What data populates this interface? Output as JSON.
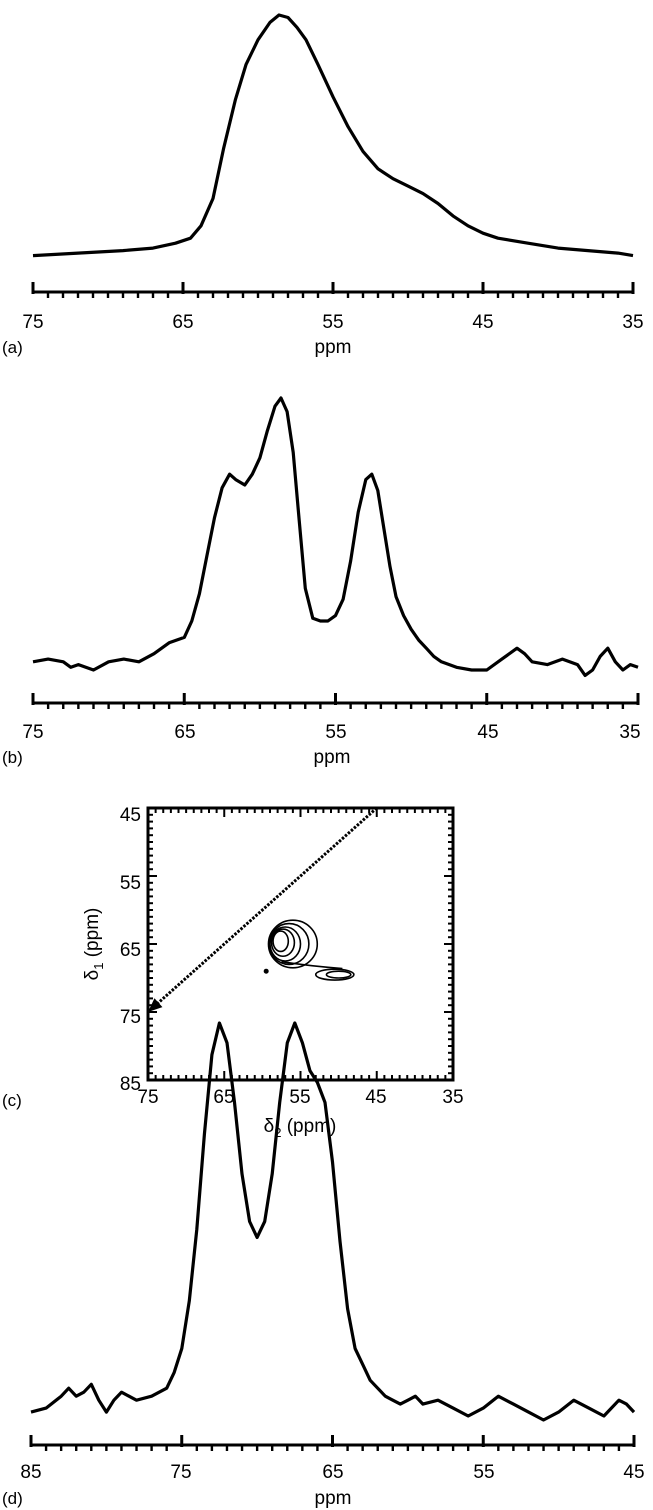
{
  "chart_data": [
    {
      "panel": "(a)",
      "type": "line",
      "xlabel": "ppm",
      "xlim": [
        75,
        35
      ],
      "xticks": [
        "75",
        "65",
        "55",
        "45",
        "35"
      ],
      "series": [
        {
          "x": [
            75,
            72,
            69,
            67,
            65.5,
            64.5,
            63.8,
            63,
            62.3,
            61.5,
            60.8,
            60,
            59.2,
            58.6,
            58,
            57.4,
            56.8,
            56,
            55,
            54,
            53,
            52,
            51,
            50,
            49,
            48,
            47,
            46,
            45,
            44,
            42,
            40,
            38,
            36,
            35
          ],
          "y": [
            0.03,
            0.04,
            0.05,
            0.06,
            0.08,
            0.1,
            0.15,
            0.26,
            0.46,
            0.66,
            0.8,
            0.9,
            0.97,
            1.0,
            0.99,
            0.95,
            0.9,
            0.8,
            0.67,
            0.55,
            0.45,
            0.38,
            0.34,
            0.31,
            0.28,
            0.24,
            0.19,
            0.15,
            0.12,
            0.1,
            0.08,
            0.06,
            0.05,
            0.04,
            0.03
          ]
        }
      ]
    },
    {
      "panel": "(b)",
      "type": "line",
      "xlabel": "ppm",
      "xlim": [
        75,
        35
      ],
      "xticks": [
        "75",
        "65",
        "55",
        "45",
        "35"
      ],
      "series": [
        {
          "x": [
            75,
            74,
            73,
            72.5,
            72,
            71,
            70,
            69,
            68,
            67,
            66,
            65,
            64.5,
            64,
            63.5,
            63,
            62.5,
            62,
            61.6,
            61,
            60.5,
            60,
            59.5,
            59,
            58.6,
            58.2,
            57.8,
            57.4,
            57,
            56.5,
            56,
            55.5,
            55,
            54.5,
            54,
            53.5,
            53,
            52.6,
            52.2,
            51.8,
            51.4,
            51,
            50.5,
            50,
            49.5,
            49,
            48.5,
            48,
            47,
            46,
            45,
            44,
            43,
            42.5,
            42,
            41,
            40,
            39,
            38.5,
            38,
            37.5,
            37,
            36.5,
            36,
            35.5,
            35
          ],
          "y": [
            0.03,
            0.04,
            0.03,
            0.01,
            0.02,
            0.0,
            0.03,
            0.04,
            0.03,
            0.06,
            0.1,
            0.12,
            0.18,
            0.28,
            0.42,
            0.56,
            0.67,
            0.72,
            0.7,
            0.68,
            0.72,
            0.78,
            0.88,
            0.97,
            1.0,
            0.95,
            0.8,
            0.55,
            0.3,
            0.19,
            0.18,
            0.18,
            0.2,
            0.26,
            0.4,
            0.58,
            0.7,
            0.72,
            0.66,
            0.52,
            0.38,
            0.27,
            0.2,
            0.15,
            0.11,
            0.08,
            0.05,
            0.03,
            0.01,
            0.0,
            0.0,
            0.04,
            0.08,
            0.06,
            0.03,
            0.02,
            0.04,
            0.02,
            -0.02,
            0.0,
            0.05,
            0.08,
            0.03,
            0.0,
            0.02,
            0.01
          ]
        }
      ]
    },
    {
      "panel": "(c)",
      "type": "contour",
      "xlabel": "δ2 (ppm)",
      "ylabel": "δ1 (ppm)",
      "xlim": [
        75,
        35
      ],
      "ylim": [
        45,
        85
      ],
      "xticks": [
        "75",
        "65",
        "55",
        "45",
        "35"
      ],
      "yticks": [
        "45",
        "55",
        "65",
        "75",
        "85"
      ],
      "diagonal": {
        "from": [
          45,
          45
        ],
        "to": [
          75,
          75
        ]
      },
      "contours": [
        {
          "center": [
            56,
            65
          ],
          "rx": 3.2,
          "ry": 3.5
        },
        {
          "center": [
            56.5,
            65
          ],
          "rx": 2.6,
          "ry": 3.0
        },
        {
          "center": [
            57,
            65
          ],
          "rx": 2.0,
          "ry": 2.5
        },
        {
          "center": [
            57.3,
            64.8
          ],
          "rx": 1.5,
          "ry": 2.0
        },
        {
          "center": [
            57.6,
            64.6
          ],
          "rx": 1.0,
          "ry": 1.5
        },
        {
          "center": [
            50.5,
            69.5
          ],
          "rx": 2.5,
          "ry": 0.8
        },
        {
          "center": [
            50,
            69.5
          ],
          "rx": 1.6,
          "ry": 0.5
        }
      ]
    },
    {
      "panel": "(d)",
      "type": "line",
      "xlabel": "ppm",
      "xlim": [
        85,
        45
      ],
      "xticks": [
        "85",
        "75",
        "65",
        "55",
        "45"
      ],
      "series": [
        {
          "x": [
            85,
            84,
            83,
            82.5,
            82,
            81.5,
            81,
            80.5,
            80,
            79.5,
            79,
            78.5,
            78,
            77,
            76,
            75.5,
            75,
            74.5,
            74,
            73.5,
            73,
            72.5,
            72,
            71.5,
            71,
            70.5,
            70,
            69.5,
            69,
            68.5,
            68,
            67.5,
            67,
            66.5,
            66,
            65.5,
            65,
            64.5,
            64,
            63.5,
            63,
            62.5,
            62,
            61.5,
            61,
            60.5,
            60,
            59.5,
            59,
            58,
            57,
            56,
            55,
            54,
            53,
            52,
            51,
            50,
            49,
            48,
            47,
            46,
            45.5,
            45
          ],
          "y": [
            0.02,
            0.03,
            0.06,
            0.08,
            0.06,
            0.07,
            0.09,
            0.05,
            0.02,
            0.05,
            0.07,
            0.06,
            0.05,
            0.06,
            0.08,
            0.12,
            0.18,
            0.3,
            0.48,
            0.72,
            0.92,
            1.0,
            0.95,
            0.8,
            0.62,
            0.5,
            0.46,
            0.5,
            0.62,
            0.8,
            0.95,
            1.0,
            0.95,
            0.88,
            0.85,
            0.8,
            0.65,
            0.45,
            0.28,
            0.18,
            0.14,
            0.1,
            0.08,
            0.06,
            0.05,
            0.04,
            0.05,
            0.06,
            0.04,
            0.05,
            0.03,
            0.01,
            0.03,
            0.06,
            0.04,
            0.02,
            0.0,
            0.02,
            0.05,
            0.03,
            0.01,
            0.05,
            0.04,
            0.02
          ]
        }
      ]
    }
  ]
}
